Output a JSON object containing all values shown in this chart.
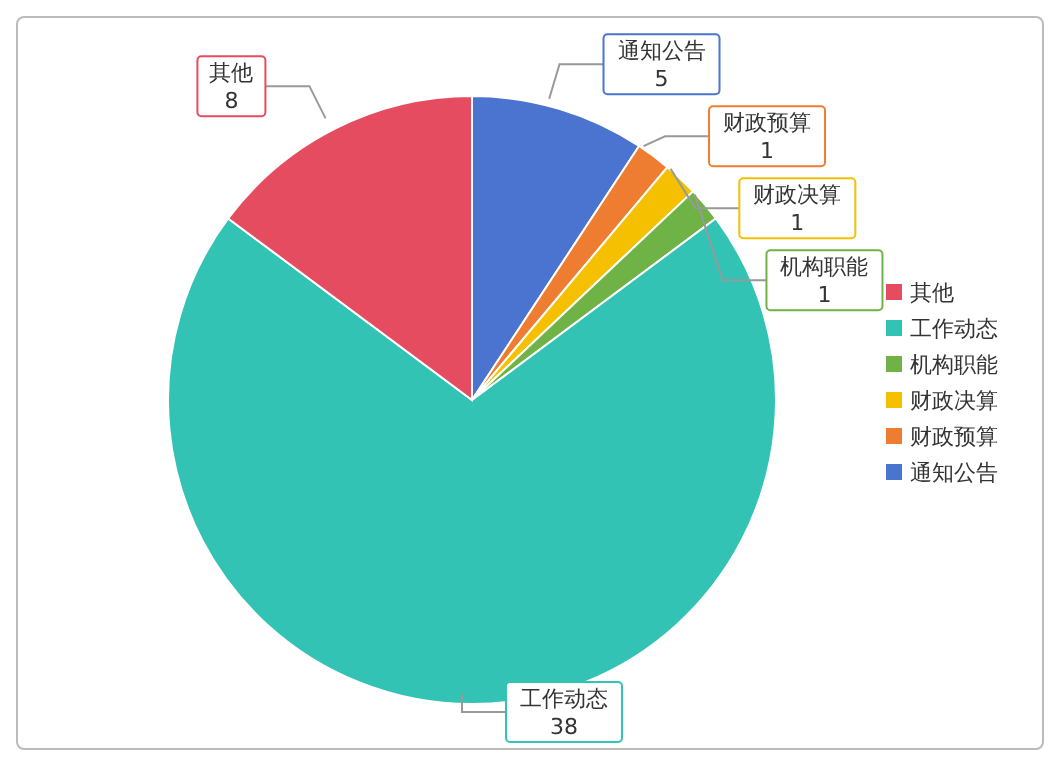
{
  "chart_data": {
    "type": "pie",
    "categories": [
      "通知公告",
      "财政预算",
      "财政决算",
      "机构职能",
      "工作动态",
      "其他"
    ],
    "values": [
      5,
      1,
      1,
      1,
      38,
      8
    ],
    "colors": [
      "#4a74d0",
      "#ef7d31",
      "#f5c000",
      "#6fb346",
      "#33c3b5",
      "#e64c60"
    ],
    "data_labels": true,
    "legend": "right"
  }
}
